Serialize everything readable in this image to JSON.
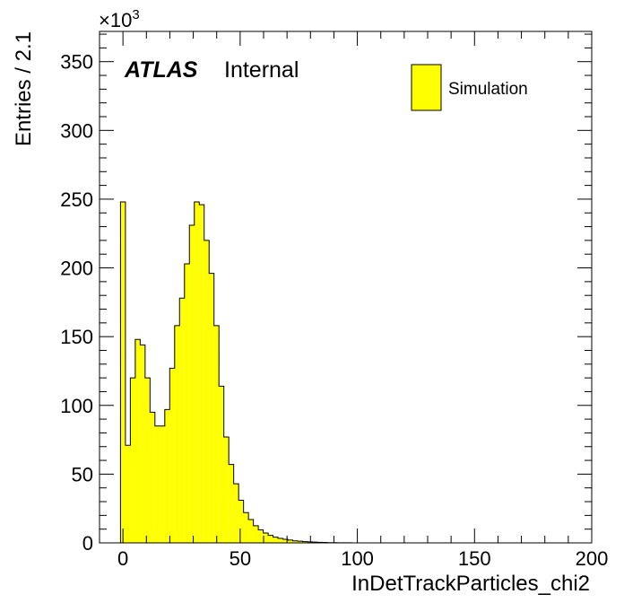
{
  "chart_data": {
    "type": "bar",
    "histogram": true,
    "xlabel": "InDetTrackParticles_chi2",
    "ylabel": "Entries / 2.1",
    "y_multiplier": "×10",
    "y_multiplier_exp": "3",
    "xlim": [
      -10,
      200
    ],
    "ylim": [
      0,
      372
    ],
    "x_ticks": [
      "0",
      "50",
      "100",
      "150",
      "200"
    ],
    "y_ticks": [
      "0",
      "50",
      "100",
      "150",
      "200",
      "250",
      "300",
      "350"
    ],
    "x_tick_values": [
      0,
      50,
      100,
      150,
      200
    ],
    "y_tick_values": [
      0,
      50,
      100,
      150,
      200,
      250,
      300,
      350
    ],
    "bin_start": -1.05,
    "bin_width": 2.1,
    "values": [
      248,
      71,
      120,
      148,
      144,
      120,
      95,
      85,
      85,
      97,
      127,
      158,
      178,
      203,
      231,
      248,
      246,
      220,
      196,
      158,
      114,
      77,
      57,
      43,
      31,
      22,
      17,
      12.5,
      9.5,
      7.2,
      5.5,
      4.2,
      3.3,
      2.6,
      2.0,
      1.5,
      1.2,
      0.9,
      0.7,
      0.55,
      0.4,
      0.3,
      0.2,
      0.15,
      0.1,
      0.07,
      0.05
    ],
    "fill_color": "#ffff00",
    "line_color": "#000000",
    "legend": [
      {
        "name": "Simulation",
        "color": "#ffff00"
      }
    ],
    "legend_position": "top-right",
    "label_atlas": "ATLAS",
    "label_status": "Internal",
    "grid": false
  }
}
